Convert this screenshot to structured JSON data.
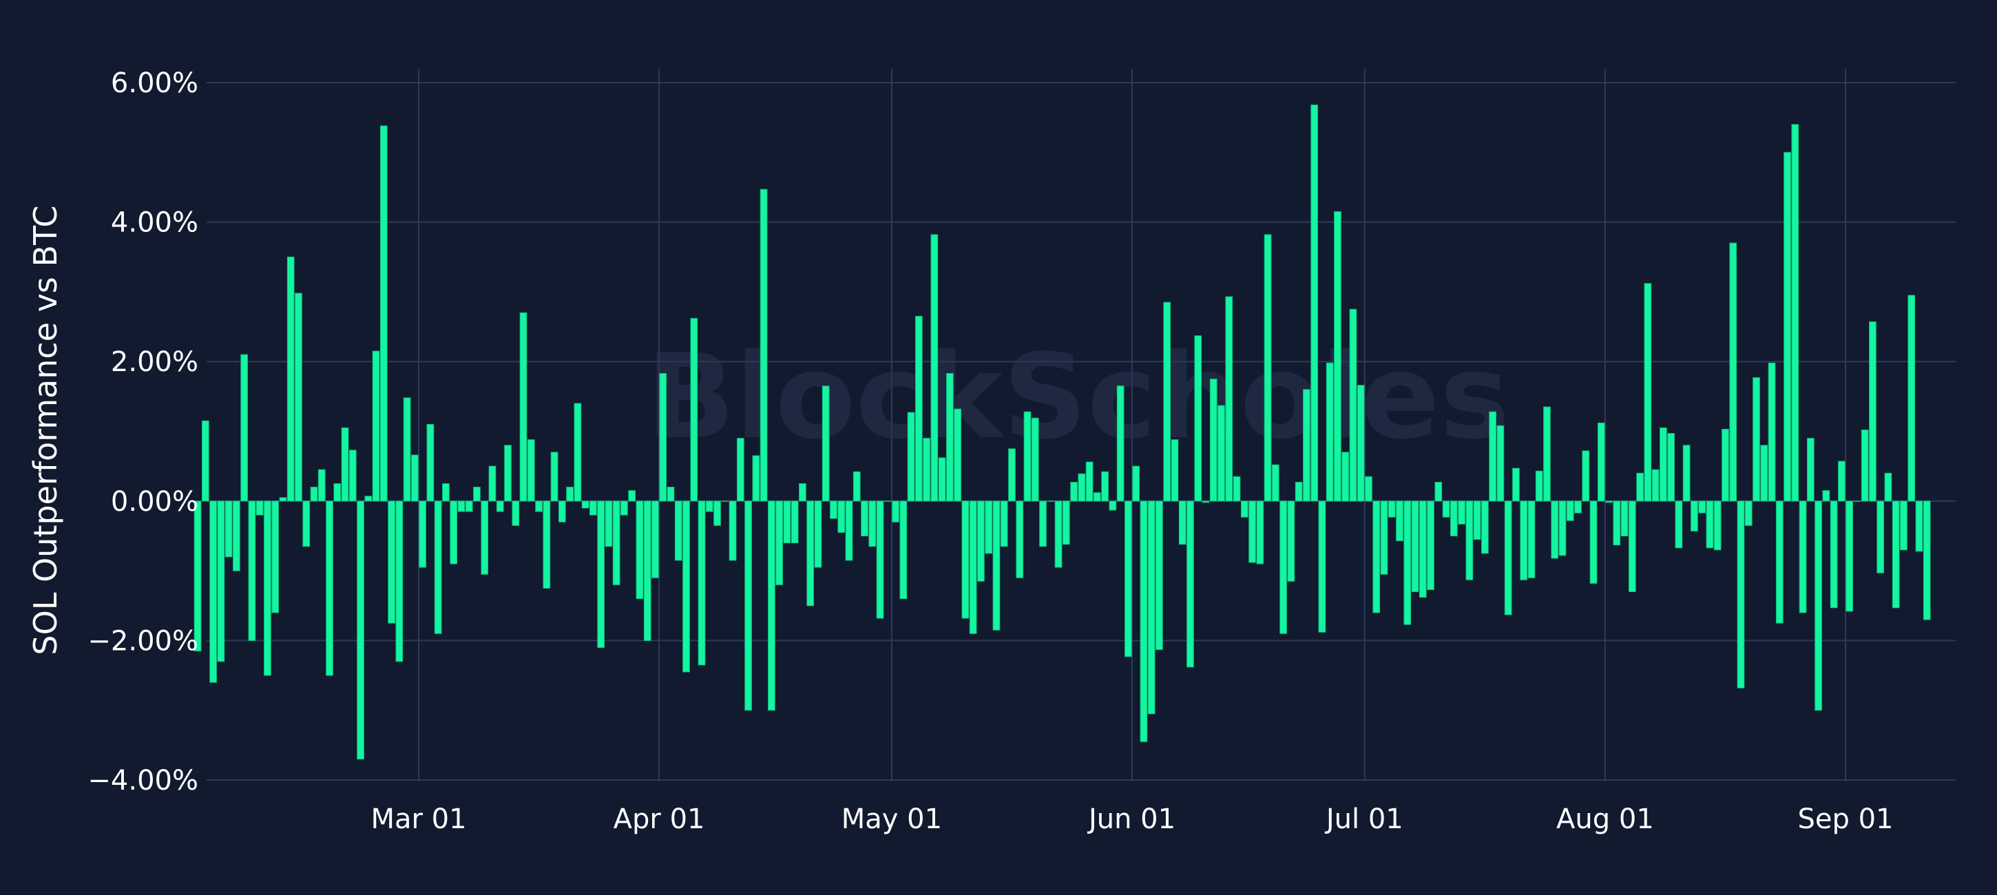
{
  "theme": {
    "background": "#111a2e",
    "grid": "#2c3a5c",
    "bar_fill": "#14f5a2",
    "bar_stroke": "#0fbf80",
    "text": "#ffffff",
    "watermark": "#2a3550"
  },
  "watermark": "BlockScholes",
  "chart_data": {
    "type": "bar",
    "title": "",
    "xlabel": "",
    "ylabel": "SOL Outperformance vs BTC",
    "ylim": [
      -4.2,
      6.2
    ],
    "yticks": [
      {
        "value": 6,
        "label": "6.00%"
      },
      {
        "value": 4,
        "label": "4.00%"
      },
      {
        "value": 2,
        "label": "2.00%"
      },
      {
        "value": 0,
        "label": "0.00%"
      },
      {
        "value": -2,
        "label": "−2.00%"
      },
      {
        "value": -4,
        "label": "−4.00%"
      }
    ],
    "start_date": "2024-02-01",
    "xticks": [
      {
        "date": "2024-03-01",
        "label": "Mar 01"
      },
      {
        "date": "2024-04-01",
        "label": "Apr 01"
      },
      {
        "date": "2024-05-01",
        "label": "May 01"
      },
      {
        "date": "2024-06-01",
        "label": "Jun 01"
      },
      {
        "date": "2024-07-01",
        "label": "Jul 01"
      },
      {
        "date": "2024-08-01",
        "label": "Aug 01"
      },
      {
        "date": "2024-09-01",
        "label": "Sep 01"
      }
    ],
    "grid": true,
    "legend": "none",
    "values": [
      -2.15,
      1.15,
      -2.6,
      -2.3,
      -0.8,
      -1.0,
      2.1,
      -2.0,
      -0.2,
      -2.5,
      -1.6,
      0.05,
      3.5,
      2.98,
      -0.65,
      0.2,
      0.45,
      -2.5,
      0.25,
      1.05,
      0.73,
      -3.7,
      0.07,
      2.15,
      5.38,
      -1.75,
      -2.3,
      1.48,
      0.66,
      -0.95,
      1.1,
      -1.9,
      0.25,
      -0.9,
      -0.15,
      -0.15,
      0.2,
      -1.05,
      0.5,
      -0.15,
      0.8,
      -0.35,
      2.7,
      0.88,
      -0.15,
      -1.25,
      0.7,
      -0.3,
      0.2,
      1.4,
      -0.1,
      -0.2,
      -2.1,
      -0.65,
      -1.2,
      -0.2,
      0.15,
      -1.4,
      -2.0,
      -1.1,
      1.83,
      0.2,
      -0.85,
      -2.45,
      2.62,
      -2.35,
      -0.15,
      -0.35,
      0.0,
      -0.85,
      0.9,
      -3.0,
      0.65,
      4.47,
      -3.0,
      -1.2,
      -0.6,
      -0.6,
      0.25,
      -1.5,
      -0.95,
      1.65,
      -0.25,
      -0.45,
      -0.85,
      0.42,
      -0.5,
      -0.65,
      -1.68,
      0.0,
      -0.3,
      -1.4,
      1.27,
      2.65,
      0.9,
      3.82,
      0.62,
      1.83,
      1.32,
      -1.68,
      -1.9,
      -1.15,
      -0.75,
      -1.85,
      -0.65,
      0.75,
      -1.1,
      1.28,
      1.19,
      -0.65,
      0.0,
      -0.95,
      -0.62,
      0.27,
      0.39,
      0.56,
      0.12,
      0.42,
      -0.13,
      1.65,
      -2.23,
      0.5,
      -3.45,
      -3.05,
      -2.13,
      2.85,
      0.88,
      -0.62,
      -2.38,
      2.37,
      -0.02,
      1.75,
      1.37,
      2.93,
      0.35,
      -0.23,
      -0.88,
      -0.9,
      3.82,
      0.52,
      -1.9,
      -1.15,
      0.27,
      1.6,
      5.68,
      -1.88,
      1.98,
      4.15,
      0.7,
      2.75,
      1.66,
      0.35,
      -1.6,
      -1.05,
      -0.23,
      -0.57,
      -1.77,
      -1.3,
      -1.38,
      -1.27,
      0.27,
      -0.23,
      -0.5,
      -0.33,
      -1.13,
      -0.55,
      -0.75,
      1.28,
      1.08,
      -1.63,
      0.47,
      -1.13,
      -1.1,
      0.43,
      1.35,
      -0.82,
      -0.78,
      -0.28,
      -0.17,
      0.72,
      -1.18,
      1.12,
      -0.02,
      -0.63,
      -0.5,
      -1.3,
      0.4,
      3.12,
      0.45,
      1.05,
      0.97,
      -0.67,
      0.8,
      -0.43,
      -0.17,
      -0.67,
      -0.7,
      1.03,
      3.7,
      -2.68,
      -0.35,
      1.77,
      0.8,
      1.98,
      -1.75,
      5.0,
      5.4,
      -1.6,
      0.9,
      -3.0,
      0.15,
      -1.53,
      0.57,
      -1.58,
      0.0,
      1.02,
      2.57,
      -1.03,
      0.4,
      -1.53,
      -0.7,
      2.95,
      -0.72,
      -1.7
    ]
  }
}
